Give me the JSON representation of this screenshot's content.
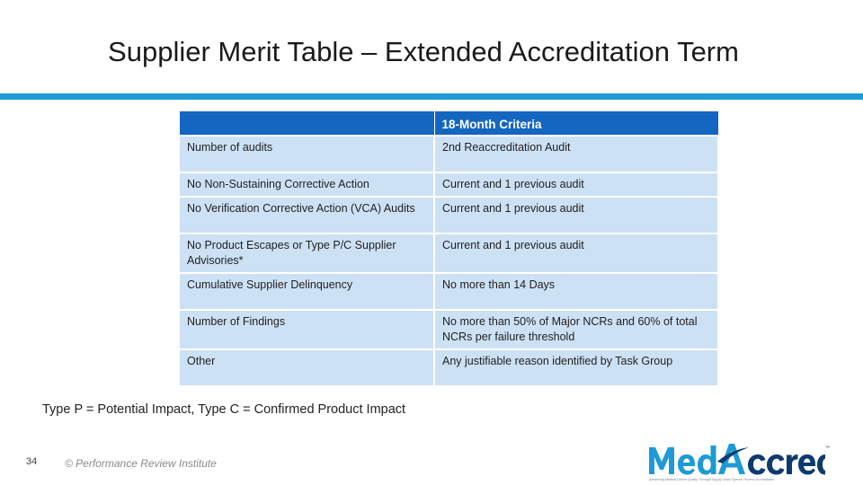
{
  "slide": {
    "title": "Supplier Merit Table – Extended Accreditation Term",
    "page_number": "34",
    "copyright": "© Performance Review Institute",
    "footnote": "Type P = Potential Impact, Type C = Confirmed Product Impact",
    "accent_color": "#1e9ad6"
  },
  "table": {
    "header": [
      "",
      "18-Month Criteria"
    ],
    "rows": [
      {
        "label": "Number of audits",
        "criteria": "2nd Reaccreditation Audit"
      },
      {
        "label": "No Non-Sustaining Corrective Action",
        "criteria": "Current and 1 previous audit"
      },
      {
        "label": "No Verification Corrective Action (VCA) Audits",
        "criteria": "Current and 1 previous audit"
      },
      {
        "label": "No Product Escapes or Type P/C Supplier Advisories*",
        "criteria": "Current and 1 previous audit"
      },
      {
        "label": "Cumulative Supplier Delinquency",
        "criteria": "No more than 14 Days"
      },
      {
        "label": "Number of Findings",
        "criteria": "No more than 50% of Major NCRs and 60% of total NCRs per failure threshold"
      },
      {
        "label": "Other",
        "criteria": "Any justifiable reason identified by Task Group"
      }
    ],
    "header_color": "#1566c0",
    "cell_color": "#cde1f5"
  },
  "logo": {
    "text": "MedAccred",
    "tagline": "Advancing Medical Device Quality Through Supply Chain Special Process Accreditation",
    "trademark": "™"
  }
}
